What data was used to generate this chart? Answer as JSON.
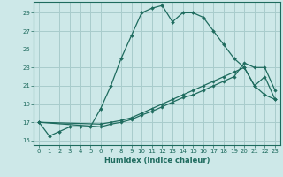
{
  "title": "",
  "xlabel": "Humidex (Indice chaleur)",
  "xlim": [
    -0.5,
    23.5
  ],
  "ylim": [
    14.5,
    30.2
  ],
  "yticks": [
    15,
    17,
    19,
    21,
    23,
    25,
    27,
    29
  ],
  "xticks": [
    0,
    1,
    2,
    3,
    4,
    5,
    6,
    7,
    8,
    9,
    10,
    11,
    12,
    13,
    14,
    15,
    16,
    17,
    18,
    19,
    20,
    21,
    22,
    23
  ],
  "bg_color": "#cde8e8",
  "grid_color": "#a8cccc",
  "line_color": "#1e6b5e",
  "line1_x": [
    0,
    1,
    2,
    3,
    4,
    5,
    6,
    7,
    8,
    9,
    10,
    11,
    12,
    13,
    14,
    15,
    16,
    17,
    18,
    19,
    20,
    21,
    22,
    23
  ],
  "line1_y": [
    17,
    15.5,
    16.0,
    16.5,
    16.5,
    16.5,
    18.5,
    21.0,
    24.0,
    26.5,
    29.0,
    29.5,
    29.8,
    28.0,
    29.0,
    29.0,
    28.5,
    27.0,
    25.5,
    24.0,
    23.0,
    21.0,
    20.0,
    19.5
  ],
  "line2_x": [
    0,
    6,
    7,
    8,
    9,
    10,
    11,
    12,
    13,
    14,
    15,
    16,
    17,
    18,
    19,
    20,
    21,
    22,
    23
  ],
  "line2_y": [
    17,
    16.8,
    17.0,
    17.2,
    17.5,
    18.0,
    18.5,
    19.0,
    19.5,
    20.0,
    20.5,
    21.0,
    21.5,
    22.0,
    22.5,
    23.0,
    21.0,
    22.0,
    19.5
  ],
  "line3_x": [
    0,
    6,
    7,
    8,
    9,
    10,
    11,
    12,
    13,
    14,
    15,
    16,
    17,
    18,
    19,
    20,
    21,
    22,
    23
  ],
  "line3_y": [
    17,
    16.5,
    16.8,
    17.0,
    17.3,
    17.8,
    18.2,
    18.7,
    19.2,
    19.7,
    20.0,
    20.5,
    21.0,
    21.5,
    22.0,
    23.5,
    23.0,
    23.0,
    20.5
  ]
}
